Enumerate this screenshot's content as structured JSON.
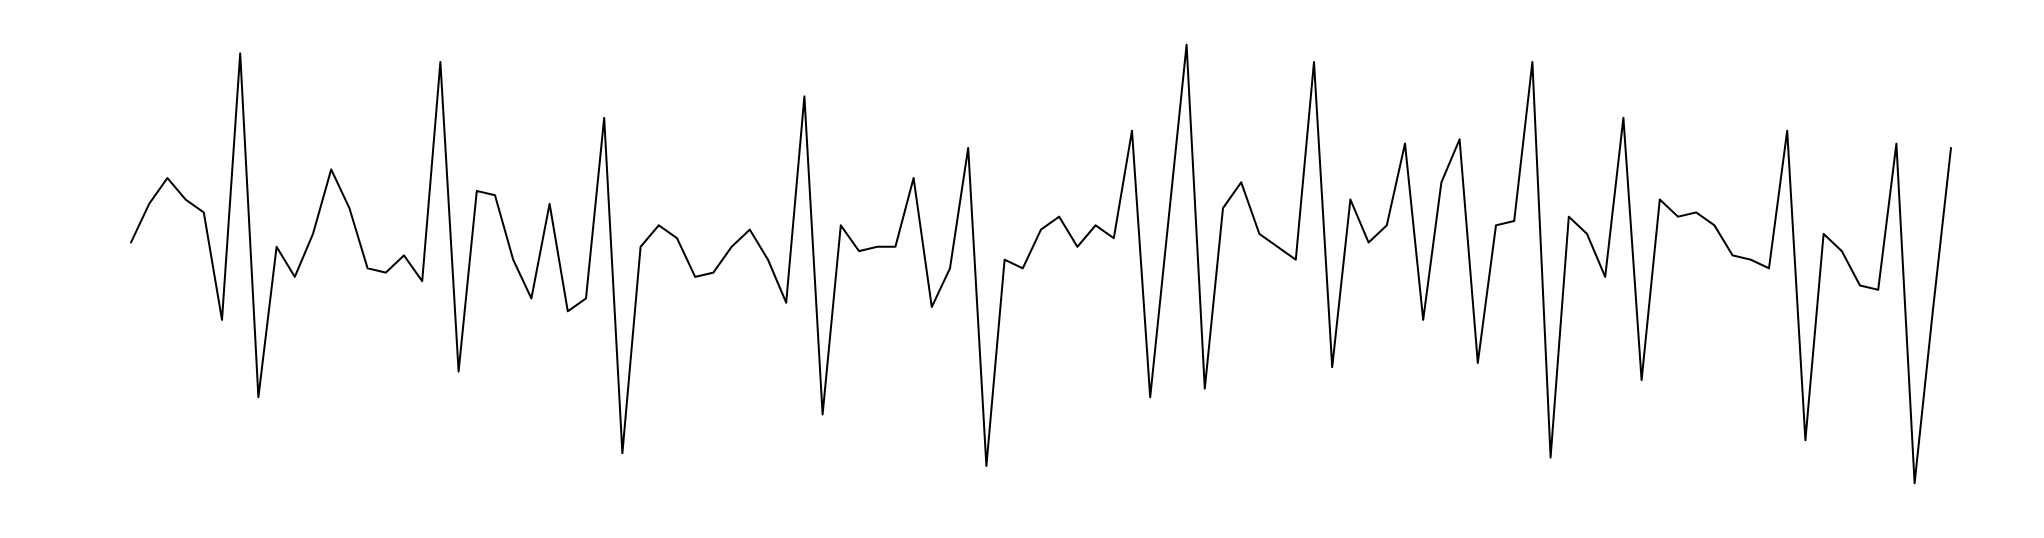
{
  "chart_data": {
    "type": "line",
    "title": "",
    "xlabel": "",
    "ylabel": "",
    "axes_visible": false,
    "grid": false,
    "legend": "none",
    "line_color": "#000000",
    "background": "#ffffff",
    "x": [
      0.0,
      0.01,
      0.02,
      0.03,
      0.04,
      0.05,
      0.06,
      0.07,
      0.08,
      0.09,
      0.1,
      0.11,
      0.12,
      0.13,
      0.14,
      0.15,
      0.16,
      0.17,
      0.18,
      0.19,
      0.2,
      0.21,
      0.22,
      0.23,
      0.24,
      0.25,
      0.26,
      0.27,
      0.28,
      0.29,
      0.3,
      0.31,
      0.32,
      0.33,
      0.34,
      0.35,
      0.36,
      0.37,
      0.38,
      0.39,
      0.4,
      0.41,
      0.42,
      0.43,
      0.44,
      0.45,
      0.46,
      0.47,
      0.48,
      0.49,
      0.5,
      0.51,
      0.52,
      0.53,
      0.54,
      0.55,
      0.56,
      0.57,
      0.58,
      0.59,
      0.6,
      0.61,
      0.62,
      0.63,
      0.64,
      0.65,
      0.66,
      0.67,
      0.68,
      0.69,
      0.7,
      0.71,
      0.72,
      0.73,
      0.74,
      0.75,
      0.76,
      0.77,
      0.78,
      0.79,
      0.8,
      0.81,
      0.82,
      0.83,
      0.84,
      0.85,
      0.86,
      0.87,
      0.88,
      0.89,
      0.9,
      0.91,
      0.92,
      0.93,
      0.94,
      0.95,
      0.96,
      0.97,
      0.98,
      0.99,
      1.0
    ],
    "series": [
      {
        "values": [
          0.1,
          0.55,
          0.85,
          0.6,
          0.45,
          -0.8,
          2.3,
          -1.7,
          0.05,
          -0.3,
          0.2,
          0.95,
          0.5,
          -0.2,
          -0.25,
          -0.05,
          -0.35,
          2.2,
          -1.4,
          0.7,
          0.65,
          -0.1,
          -0.55,
          0.55,
          -0.7,
          -0.55,
          1.55,
          -2.35,
          0.05,
          0.3,
          0.15,
          -0.3,
          -0.25,
          0.05,
          0.25,
          -0.1,
          -0.6,
          1.8,
          -1.9,
          0.3,
          0.0,
          0.05,
          0.05,
          0.85,
          -0.65,
          -0.2,
          1.2,
          -2.5,
          -0.1,
          -0.2,
          0.25,
          0.4,
          0.05,
          0.3,
          0.15,
          1.4,
          -1.7,
          0.35,
          2.4,
          -1.6,
          0.5,
          0.8,
          0.2,
          0.05,
          -0.1,
          2.2,
          -1.35,
          0.6,
          0.1,
          0.3,
          1.25,
          -0.8,
          0.8,
          1.3,
          -1.3,
          0.3,
          0.35,
          2.2,
          -2.4,
          0.4,
          0.2,
          -0.3,
          1.55,
          -1.5,
          0.6,
          0.4,
          0.45,
          0.3,
          -0.05,
          -0.1,
          -0.2,
          1.4,
          -2.2,
          0.2,
          0.0,
          -0.4,
          -0.45,
          1.25,
          -2.7,
          -0.7,
          1.2
        ]
      }
    ]
  }
}
